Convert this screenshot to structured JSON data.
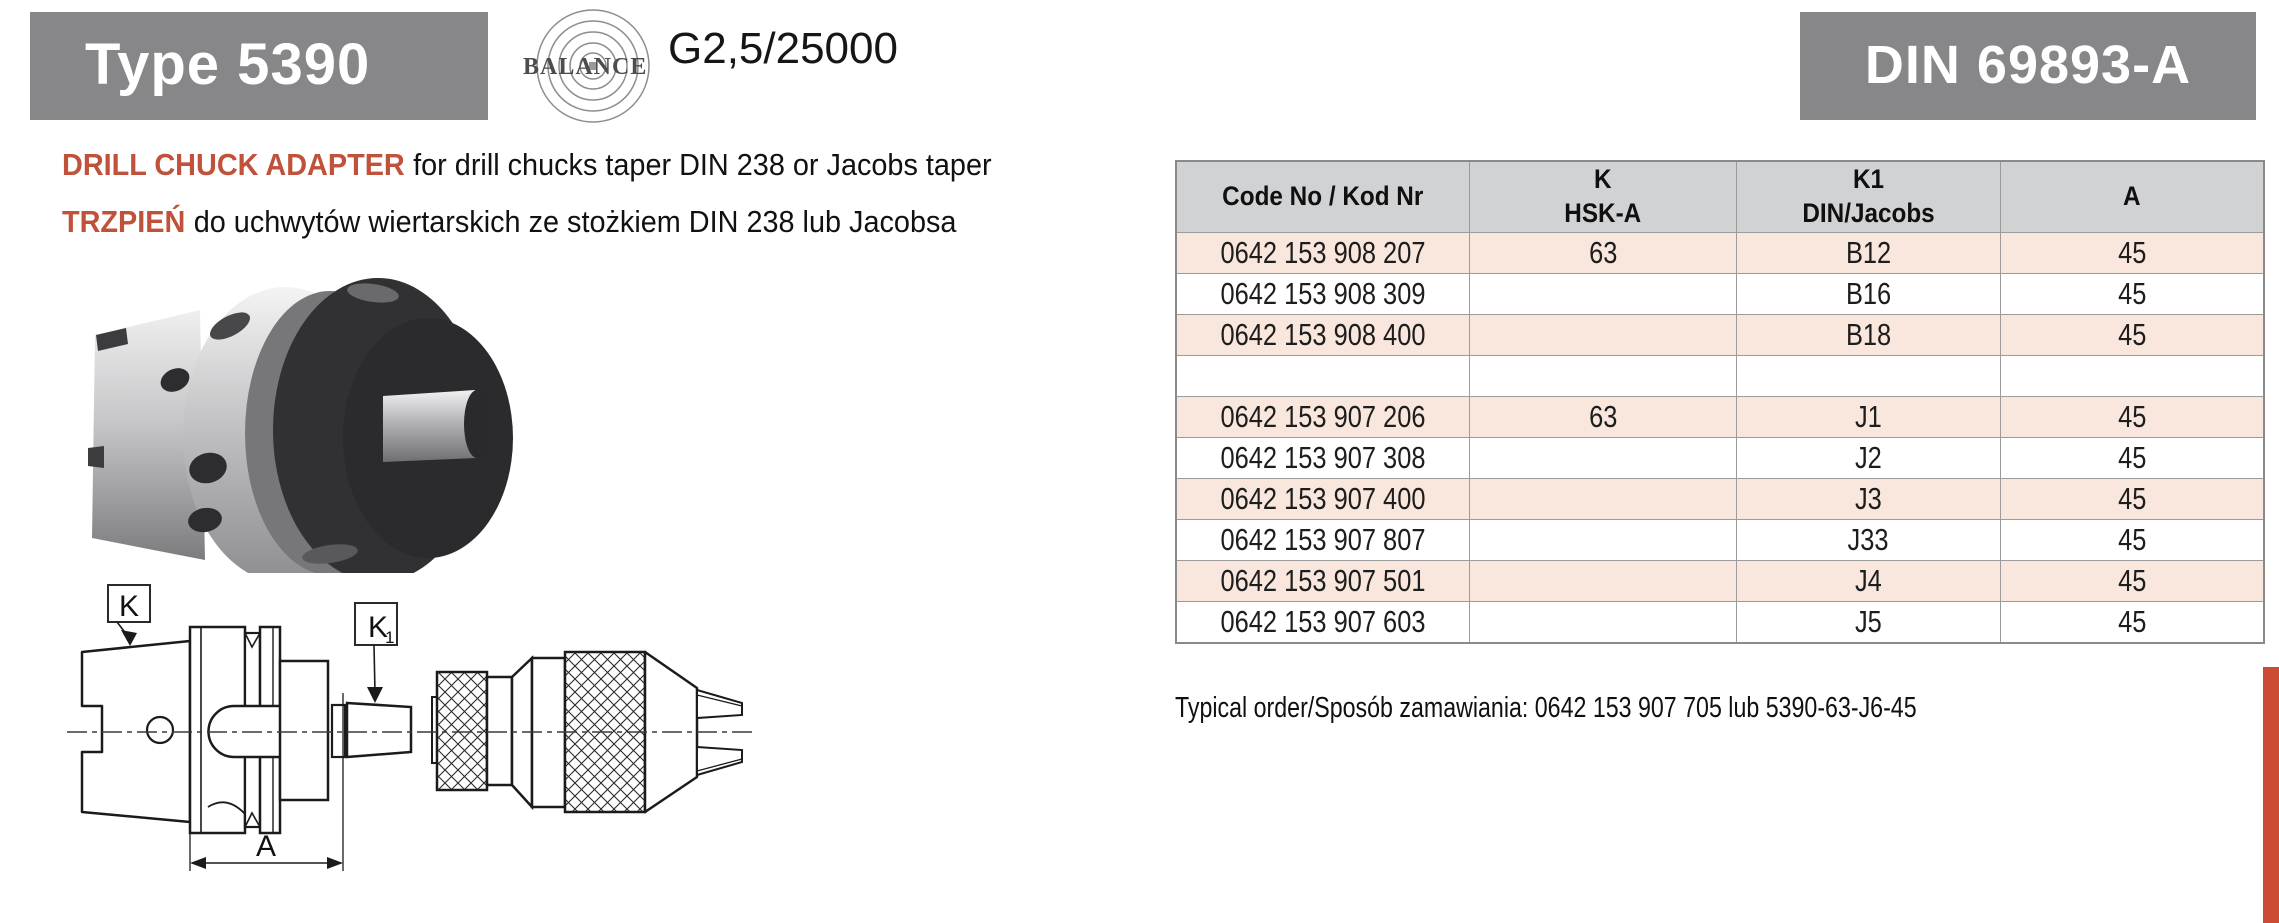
{
  "header": {
    "type_label": "Type 5390",
    "standard_label": "DIN 69893-A",
    "balance_text": "BALANCE",
    "balance_grade": "G2,5/25000"
  },
  "description": {
    "title_en": "DRILL CHUCK ADAPTER",
    "text_en": "for drill chucks taper DIN 238 or Jacobs taper",
    "title_pl": "TRZPIEŃ",
    "text_pl": "do uchwytów wiertarskich ze stożkiem DIN 238 lub Jacobsa"
  },
  "drawing": {
    "k_label": "K",
    "k1_label": "K",
    "k1_sub": "1",
    "a_label": "A"
  },
  "table": {
    "headers": [
      {
        "line1": "Code No / Kod Nr",
        "line2": ""
      },
      {
        "line1": "K",
        "line2": "HSK-A"
      },
      {
        "line1": "K1",
        "line2": "DIN/Jacobs"
      },
      {
        "line1": "A",
        "line2": ""
      }
    ],
    "rows": [
      [
        "0642 153 908 207",
        "63",
        "B12",
        "45"
      ],
      [
        "0642 153 908 309",
        "",
        "B16",
        "45"
      ],
      [
        "0642 153 908 400",
        "",
        "B18",
        "45"
      ],
      [
        "",
        "",
        "",
        ""
      ],
      [
        "0642 153 907 206",
        "63",
        "J1",
        "45"
      ],
      [
        "0642 153 907 308",
        "",
        "J2",
        "45"
      ],
      [
        "0642 153 907 400",
        "",
        "J3",
        "45"
      ],
      [
        "0642 153 907 807",
        "",
        "J33",
        "45"
      ],
      [
        "0642 153 907 501",
        "",
        "J4",
        "45"
      ],
      [
        "0642 153 907 603",
        "",
        "J5",
        "45"
      ]
    ]
  },
  "order_note": "Typical order/Sposób zamawiania: 0642 153 907 705 lub 5390-63-J6-45",
  "colors": {
    "header_gray": "#87878a",
    "table_header_bg": "#d1d2d4",
    "row_pink": "#f9e7dd",
    "accent_red": "#c0513a",
    "side_bar_red": "#cb4b33"
  }
}
